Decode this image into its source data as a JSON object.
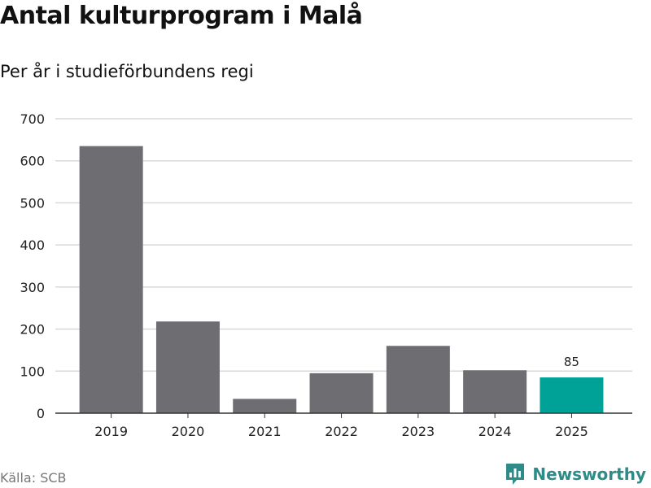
{
  "title": "Antal kulturprogram i Malå",
  "subtitle": "Per år i studieförbundens regi",
  "source": "Källa: SCB",
  "brand": {
    "name": "Newsworthy",
    "icon": "newsworthy-logo-icon",
    "color": "#2e8b88"
  },
  "colors": {
    "bar": "#6e6d72",
    "highlight": "#00a298",
    "grid": "#d9d9d9",
    "axis": "#333333"
  },
  "chart_data": {
    "type": "bar",
    "title": "Antal kulturprogram i Malå",
    "subtitle": "Per år i studieförbundens regi",
    "categories": [
      "2019",
      "2020",
      "2021",
      "2022",
      "2023",
      "2024",
      "2025"
    ],
    "values": [
      635,
      218,
      34,
      95,
      160,
      102,
      85
    ],
    "highlight_index": 6,
    "data_labels": [
      {
        "index": 6,
        "text": "85"
      }
    ],
    "xlabel": "",
    "ylabel": "",
    "ylim": [
      0,
      700
    ],
    "yticks": [
      0,
      100,
      200,
      300,
      400,
      500,
      600,
      700
    ],
    "grid": true
  }
}
